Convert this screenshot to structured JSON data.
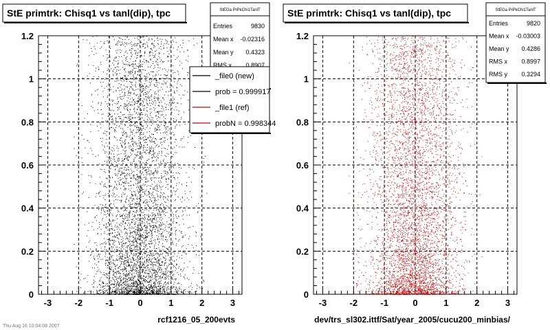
{
  "footer_date": "Thu Aug 16 10:04:08 2007",
  "chart_data": [
    {
      "type": "scatter",
      "title": "StE primtrk: Chisq1 vs tanl(dip), tpc",
      "xlabel": "rcf1216_05_200evts",
      "ylabel": "",
      "xlim": [
        -3.3,
        3.3
      ],
      "ylim": [
        0,
        1.2
      ],
      "xticks": [
        "-3",
        "-2",
        "-1",
        "0",
        "1",
        "2",
        "3"
      ],
      "yticks": [
        "0",
        "0.2",
        "0.4",
        "0.6",
        "0.8",
        "1",
        "1.2"
      ],
      "grid": true,
      "marker_color": "#000000",
      "stats": {
        "header": "StEGa PrPkChi1TanlT",
        "rows": [
          {
            "label": "Entries",
            "value": "9830"
          },
          {
            "label": "Mean x",
            "value": "-0.02316"
          },
          {
            "label": "Mean y",
            "value": "0.4323"
          },
          {
            "label": "RMS x",
            "value": "0.8907"
          }
        ]
      },
      "legend": {
        "placement": "top-right",
        "entries": [
          {
            "label": "_file0 (new)",
            "color": "#000000"
          },
          {
            "label": "prob = 0.999917",
            "color": "#000000"
          },
          {
            "label": "_file1 (ref)",
            "color": "#cc0000"
          },
          {
            "label": "probN = 0.998344",
            "color": "#cc0000"
          }
        ]
      },
      "series": [
        {
          "entries": 9830,
          "mean_x": -0.02316,
          "mean_y": 0.4323,
          "rms_x": 0.8907
        }
      ]
    },
    {
      "type": "scatter",
      "title": "StE primtrk: Chisq1 vs tanl(dip), tpc",
      "xlabel": "dev/trs_sl302.ittf/Sat/year_2005/cucu200_minbias/",
      "ylabel": "",
      "xlim": [
        -3.3,
        3.3
      ],
      "ylim": [
        0,
        1.2
      ],
      "xticks": [
        "-3",
        "-2",
        "-1",
        "0",
        "1",
        "2",
        "3"
      ],
      "yticks": [
        "0",
        "0.2",
        "0.4",
        "0.6",
        "0.8",
        "1",
        "1.2"
      ],
      "grid": true,
      "marker_color": "#cc0000",
      "stats": {
        "header": "StEGa PrPkChi1TanlT",
        "rows": [
          {
            "label": "Entries",
            "value": "9820"
          },
          {
            "label": "Mean x",
            "value": "-0.03003"
          },
          {
            "label": "Mean y",
            "value": "0.4286"
          },
          {
            "label": "RMS x",
            "value": "0.8997"
          },
          {
            "label": "RMS y",
            "value": "0.3294"
          }
        ]
      },
      "series": [
        {
          "entries": 9820,
          "mean_x": -0.03003,
          "mean_y": 0.4286,
          "rms_x": 0.8997,
          "rms_y": 0.3294
        }
      ]
    }
  ]
}
